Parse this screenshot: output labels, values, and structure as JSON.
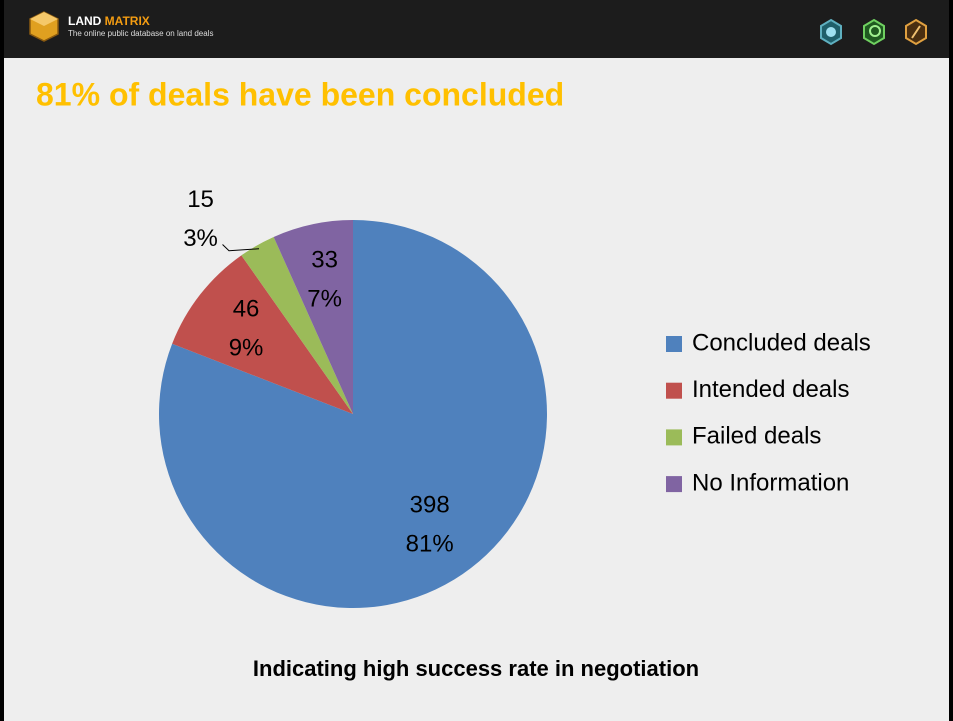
{
  "header": {
    "brand_first": "LAND ",
    "brand_second": "MATRIX",
    "tagline": "The online public database on land deals"
  },
  "chart_data": {
    "type": "pie",
    "title": "81% of deals have been concluded",
    "categories": [
      "Concluded deals",
      "Intended deals",
      "Failed deals",
      "No Information"
    ],
    "values": [
      398,
      46,
      15,
      33
    ],
    "percent_labels": [
      "81%",
      "9%",
      "3%",
      "7%"
    ],
    "colors": [
      "#4f81bd",
      "#c0504d",
      "#9bbb59",
      "#8064a2"
    ],
    "legend": "right",
    "footnote": "Indicating high success rate in negotiation"
  }
}
